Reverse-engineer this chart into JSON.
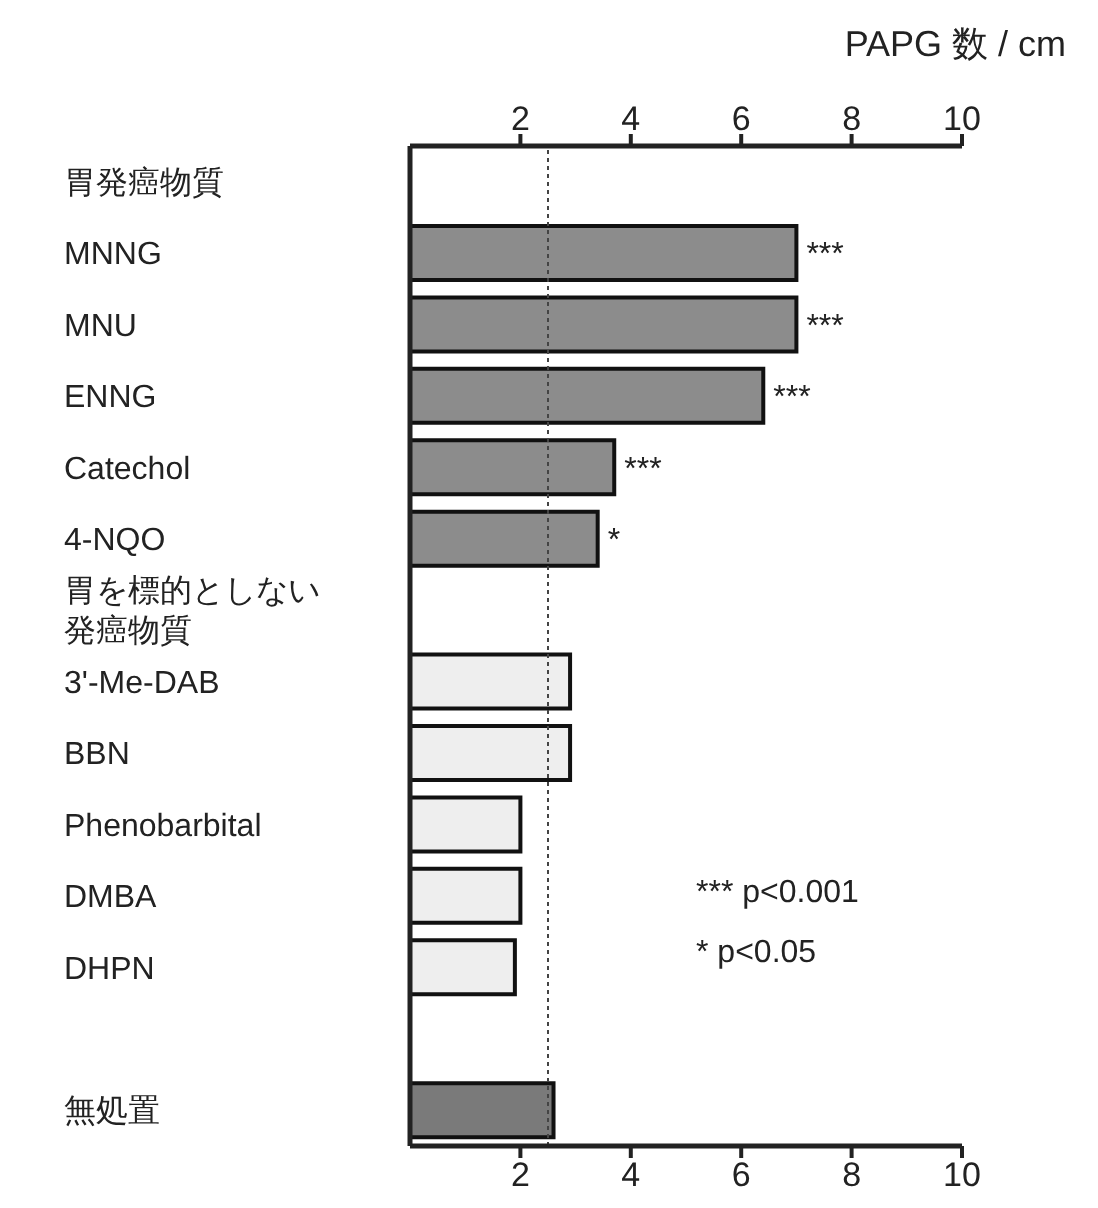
{
  "chart_data": {
    "type": "bar",
    "orientation": "horizontal",
    "x2label": "PAPG 数 / cm",
    "categories": [
      "胃発癌物質",
      "MNNG",
      "MNU",
      "ENNG",
      "Catechol",
      "4-NQO",
      "胃を標的としない発癌物質",
      "3'-Me-DAB",
      "BBN",
      "Phenobarbital",
      "DMBA",
      "DHPN",
      null,
      "無処置"
    ],
    "values": [
      null,
      7.0,
      7.0,
      6.4,
      3.7,
      3.4,
      null,
      2.9,
      2.9,
      2.0,
      2.0,
      1.9,
      null,
      2.6
    ],
    "colors": [
      null,
      "#8c8c8c",
      "#8c8c8c",
      "#8c8c8c",
      "#8c8c8c",
      "#8c8c8c",
      null,
      "#eeeeee",
      "#eeeeee",
      "#eeeeee",
      "#eeeeee",
      "#eeeeee",
      null,
      "#7a7a7a"
    ],
    "value_labels": [
      null,
      "***",
      "***",
      "***",
      "***",
      "*",
      null,
      null,
      null,
      null,
      null,
      null,
      null,
      null
    ],
    "xlim": [
      0,
      10
    ],
    "xticks": [
      2,
      4,
      6,
      8,
      10
    ],
    "x2lim": [
      0,
      10
    ],
    "x2ticks": [
      2,
      4,
      6,
      8,
      10
    ],
    "ref_lines": [
      {
        "axis": "x",
        "value": 2.5,
        "line_style": "dotted",
        "color": "#444444"
      }
    ],
    "annotations": [
      "*** p<0.001",
      "* p<0.05"
    ],
    "grid": false
  }
}
